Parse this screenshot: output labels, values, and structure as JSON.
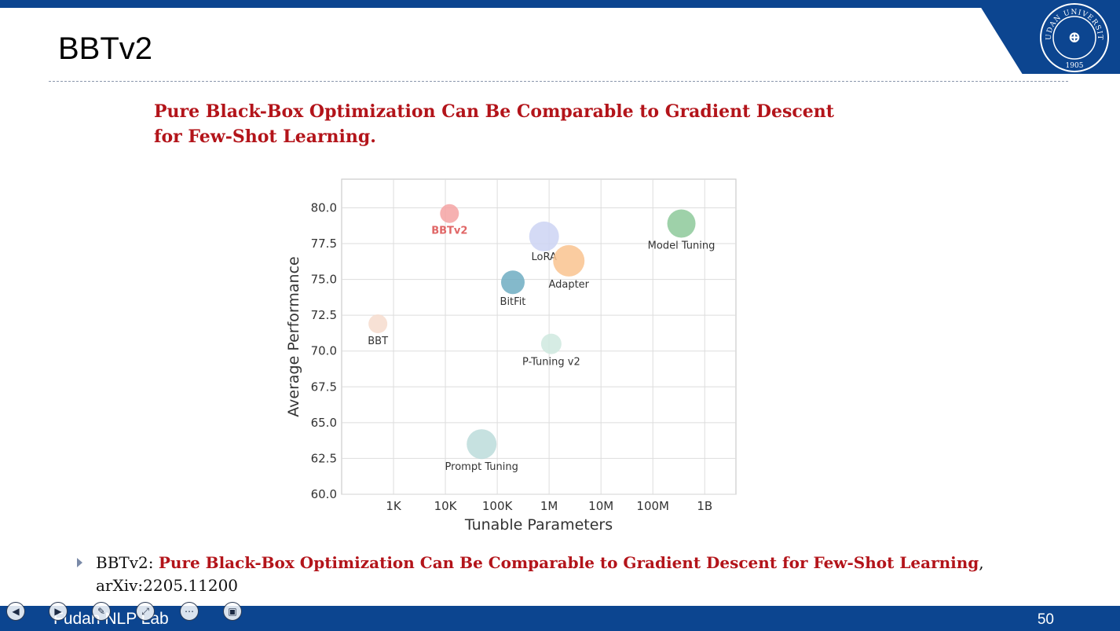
{
  "slide": {
    "title": "BBTv2",
    "headline_line1": "Pure Black-Box Optimization Can Be Comparable to Gradient Descent",
    "headline_line2": "for Few-Shot Learning.",
    "reference_prefix": "BBTv2: ",
    "reference_title": "Pure Black-Box Optimization Can Be Comparable to Gradient Descent for Few-Shot Learning",
    "reference_suffix": ",",
    "reference_line2": "arXiv:2205.11200",
    "footer_lab": "Fudan NLP Lab",
    "page_number": "50"
  },
  "logo": {
    "arc_text": "FUDAN UNIVERSITY",
    "year": "1905"
  },
  "controls": [
    {
      "icon": "previous-icon",
      "glyph": "◀"
    },
    {
      "icon": "next-icon",
      "glyph": "▶"
    },
    {
      "icon": "pen-icon",
      "glyph": "✎"
    },
    {
      "icon": "zoom-icon",
      "glyph": "⤢"
    },
    {
      "icon": "more-icon",
      "glyph": "⋯"
    },
    {
      "icon": "screen-icon",
      "glyph": "▣"
    }
  ],
  "colors": {
    "brand_blue": "#0c4590",
    "accent_red": "#b3141a"
  },
  "chart_data": {
    "type": "scatter",
    "xlabel": "Tunable Parameters",
    "ylabel": "Average Performance",
    "x_scale": "log",
    "x_ticks": [
      1000,
      10000,
      100000,
      1000000,
      10000000,
      100000000,
      1000000000
    ],
    "x_tick_labels": [
      "1K",
      "10K",
      "100K",
      "1M",
      "10M",
      "100M",
      "1B"
    ],
    "xlim": [
      100,
      4000000000
    ],
    "y_ticks": [
      60.0,
      62.5,
      65.0,
      67.5,
      70.0,
      72.5,
      75.0,
      77.5,
      80.0
    ],
    "y_tick_labels": [
      "60.0",
      "62.5",
      "65.0",
      "67.5",
      "70.0",
      "72.5",
      "75.0",
      "77.5",
      "80.0"
    ],
    "ylim": [
      60,
      82
    ],
    "grid": true,
    "points": [
      {
        "label": "BBTv2",
        "x": 12000,
        "y": 79.6,
        "size": 12,
        "color": "#f4a3a3",
        "label_color": "#e06666",
        "label_bold": true,
        "label_pos": "below"
      },
      {
        "label": "LoRA",
        "x": 800000,
        "y": 78.0,
        "size": 19,
        "color": "#cdd3f3",
        "label_color": "#333333",
        "label_bold": false,
        "label_pos": "below-left"
      },
      {
        "label": "Model Tuning",
        "x": 355000000,
        "y": 78.9,
        "size": 18,
        "color": "#8dc99a",
        "label_color": "#333333",
        "label_bold": false,
        "label_pos": "below"
      },
      {
        "label": "Adapter",
        "x": 2400000,
        "y": 76.3,
        "size": 20,
        "color": "#f9c38f",
        "label_color": "#333333",
        "label_bold": false,
        "label_pos": "below"
      },
      {
        "label": "BitFit",
        "x": 200000,
        "y": 74.8,
        "size": 15,
        "color": "#6fadc2",
        "label_color": "#333333",
        "label_bold": false,
        "label_pos": "below"
      },
      {
        "label": "BBT",
        "x": 500,
        "y": 71.9,
        "size": 12,
        "color": "#f6dcce",
        "label_color": "#333333",
        "label_bold": false,
        "label_pos": "below"
      },
      {
        "label": "P-Tuning v2",
        "x": 1100000,
        "y": 70.5,
        "size": 13,
        "color": "#cfe9df",
        "label_color": "#333333",
        "label_bold": false,
        "label_pos": "below"
      },
      {
        "label": "Prompt Tuning",
        "x": 50000,
        "y": 63.5,
        "size": 19,
        "color": "#bcdcda",
        "label_color": "#333333",
        "label_bold": false,
        "label_pos": "below"
      }
    ]
  }
}
